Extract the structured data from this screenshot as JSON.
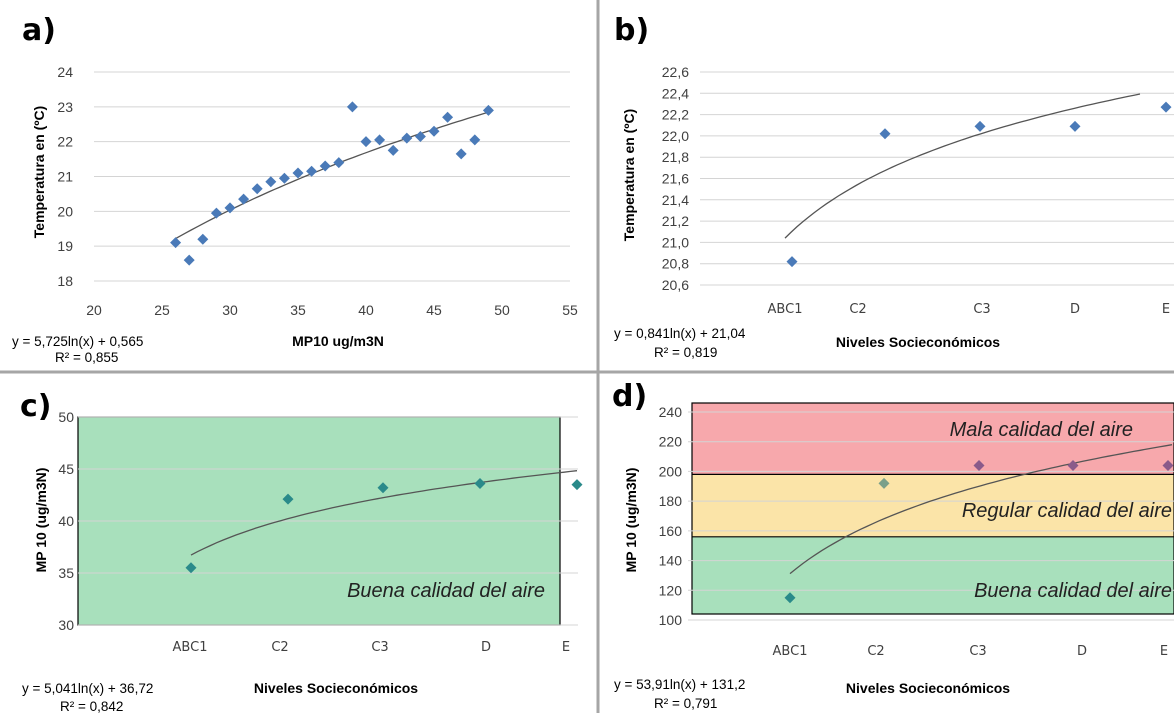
{
  "colors": {
    "marker": "#4a7ab8",
    "marker_c": "#2a8a8a",
    "marker_d_top": "#8a5a8a",
    "marker_d_mid": "#7aa08a",
    "marker_d_low": "#2a8a8a",
    "trend": "#555555",
    "green_zone": "#a8e0bc",
    "yellow_zone": "#fbe4a8",
    "red_zone": "#f7a8ac",
    "divider": "#a6a6a6"
  },
  "chart_data": [
    {
      "panel": "a)",
      "type": "scatter",
      "ylabel": "Temperatura en (ºC)",
      "xlabel": "MP10 ug/m3N",
      "xlim": [
        20,
        55
      ],
      "ylim": [
        18,
        24
      ],
      "xticks": [
        "20",
        "25",
        "30",
        "35",
        "40",
        "45",
        "50",
        "55"
      ],
      "yticks": [
        "18",
        "19",
        "20",
        "21",
        "22",
        "23",
        "24"
      ],
      "points": [
        [
          26,
          19.1
        ],
        [
          27,
          18.6
        ],
        [
          28,
          19.2
        ],
        [
          29,
          19.95
        ],
        [
          30,
          20.1
        ],
        [
          31,
          20.35
        ],
        [
          32,
          20.65
        ],
        [
          33,
          20.85
        ],
        [
          34,
          20.95
        ],
        [
          35,
          21.1
        ],
        [
          36,
          21.15
        ],
        [
          37,
          21.3
        ],
        [
          38,
          21.4
        ],
        [
          39,
          23.0
        ],
        [
          40,
          22.0
        ],
        [
          41,
          22.05
        ],
        [
          42,
          21.75
        ],
        [
          43,
          22.1
        ],
        [
          44,
          22.15
        ],
        [
          45,
          22.3
        ],
        [
          46,
          22.7
        ],
        [
          47,
          21.65
        ],
        [
          48,
          22.05
        ],
        [
          49,
          22.9
        ]
      ],
      "trendline": {
        "a": 5.725,
        "b": 0.565,
        "x_from": 26,
        "x_to": 49
      },
      "equation": "y = 5,725ln(x) + 0,565",
      "r2": "R² = 0,855",
      "grid": true
    },
    {
      "panel": "b)",
      "type": "scatter",
      "ylabel": "Temperatura en (ºC)",
      "xlabel": "Niveles Socieconómicos",
      "ylim": [
        20.6,
        22.6
      ],
      "categories": [
        "ABC1",
        "C2",
        "C3",
        "D",
        "E"
      ],
      "yticks": [
        "20,6",
        "20,8",
        "21,0",
        "21,2",
        "21,4",
        "21,6",
        "21,8",
        "22,0",
        "22,2",
        "22,4",
        "22,6"
      ],
      "values": [
        20.82,
        22.02,
        22.09,
        22.09,
        22.27
      ],
      "trendline": {
        "a": 0.841,
        "b": 21.04
      },
      "equation": "y = 0,841ln(x) + 21,04",
      "r2": "R² = 0,819",
      "grid": true
    },
    {
      "panel": "c)",
      "type": "scatter",
      "ylabel": "MP 10 (ug/m3N)",
      "xlabel": "Niveles Socieconómicos",
      "ylim": [
        30,
        50
      ],
      "categories": [
        "ABC1",
        "C2",
        "C3",
        "D",
        "E"
      ],
      "yticks": [
        "30",
        "35",
        "40",
        "45",
        "50"
      ],
      "values": [
        35.5,
        42.1,
        43.2,
        43.6,
        43.5
      ],
      "trendline": {
        "a": 5.041,
        "b": 36.72
      },
      "equation": "y = 5,041ln(x) + 36,72",
      "r2": "R² = 0,842",
      "zones": [
        {
          "label": "Buena calidad del aire",
          "from": 30,
          "to": 50,
          "color": "green"
        }
      ],
      "grid": true
    },
    {
      "panel": "d)",
      "type": "scatter",
      "ylabel": "MP 10 (ug/m3N)",
      "xlabel": "Niveles Socieconómicos",
      "ylim": [
        100,
        240
      ],
      "categories": [
        "ABC1",
        "C2",
        "C3",
        "D",
        "E"
      ],
      "yticks": [
        "100",
        "120",
        "140",
        "160",
        "180",
        "200",
        "220",
        "240"
      ],
      "values": [
        115,
        192,
        204,
        204,
        204
      ],
      "trendline": {
        "a": 53.91,
        "b": 131.2
      },
      "equation": "y = 53,91ln(x) + 131,2",
      "r2": "R² = 0,791",
      "zones": [
        {
          "label": "Mala calidad del aire",
          "from": 198,
          "to": 240,
          "color": "red"
        },
        {
          "label": "Regular calidad del aire",
          "from": 156,
          "to": 198,
          "color": "yellow"
        },
        {
          "label": "Buena calidad del aire",
          "from": 100,
          "to": 156,
          "color": "green"
        }
      ],
      "grid": true
    }
  ]
}
